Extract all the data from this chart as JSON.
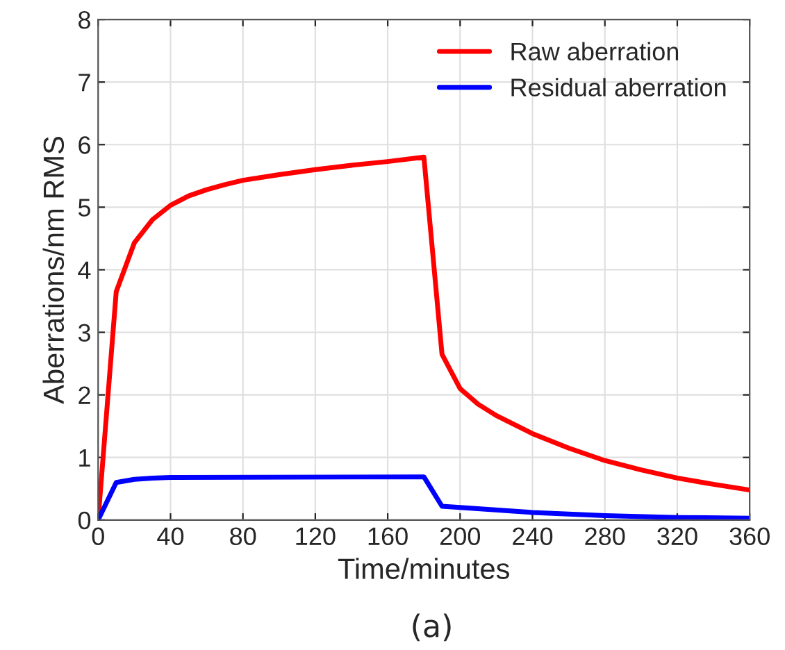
{
  "chart_data": {
    "type": "line",
    "xlabel": "Time/minutes",
    "ylabel": "Aberrations/nm RMS",
    "annotations": [
      "(a)"
    ],
    "xlim": [
      0,
      360
    ],
    "xticks": [
      0,
      40,
      80,
      120,
      160,
      200,
      240,
      280,
      320,
      360
    ],
    "ylim": [
      0,
      8
    ],
    "yticks": [
      0,
      1,
      2,
      3,
      4,
      5,
      6,
      7,
      8
    ],
    "grid": true,
    "legend": "top right",
    "series": [
      {
        "name": "Raw aberration",
        "color": "#ff0000",
        "x": [
          0,
          10,
          20,
          30,
          40,
          50,
          60,
          70,
          80,
          100,
          120,
          140,
          160,
          180,
          190,
          200,
          210,
          220,
          240,
          260,
          280,
          300,
          320,
          340,
          360
        ],
        "values": [
          0,
          3.65,
          4.43,
          4.8,
          5.03,
          5.18,
          5.28,
          5.36,
          5.43,
          5.52,
          5.6,
          5.67,
          5.73,
          5.8,
          2.65,
          2.1,
          1.85,
          1.67,
          1.38,
          1.15,
          0.95,
          0.8,
          0.67,
          0.57,
          0.48
        ]
      },
      {
        "name": "Residual aberration",
        "color": "#0000ff",
        "x": [
          0,
          10,
          20,
          30,
          40,
          180,
          190,
          200,
          240,
          280,
          320,
          360
        ],
        "values": [
          0,
          0.6,
          0.65,
          0.67,
          0.68,
          0.69,
          0.22,
          0.2,
          0.12,
          0.07,
          0.04,
          0.03
        ]
      }
    ]
  }
}
